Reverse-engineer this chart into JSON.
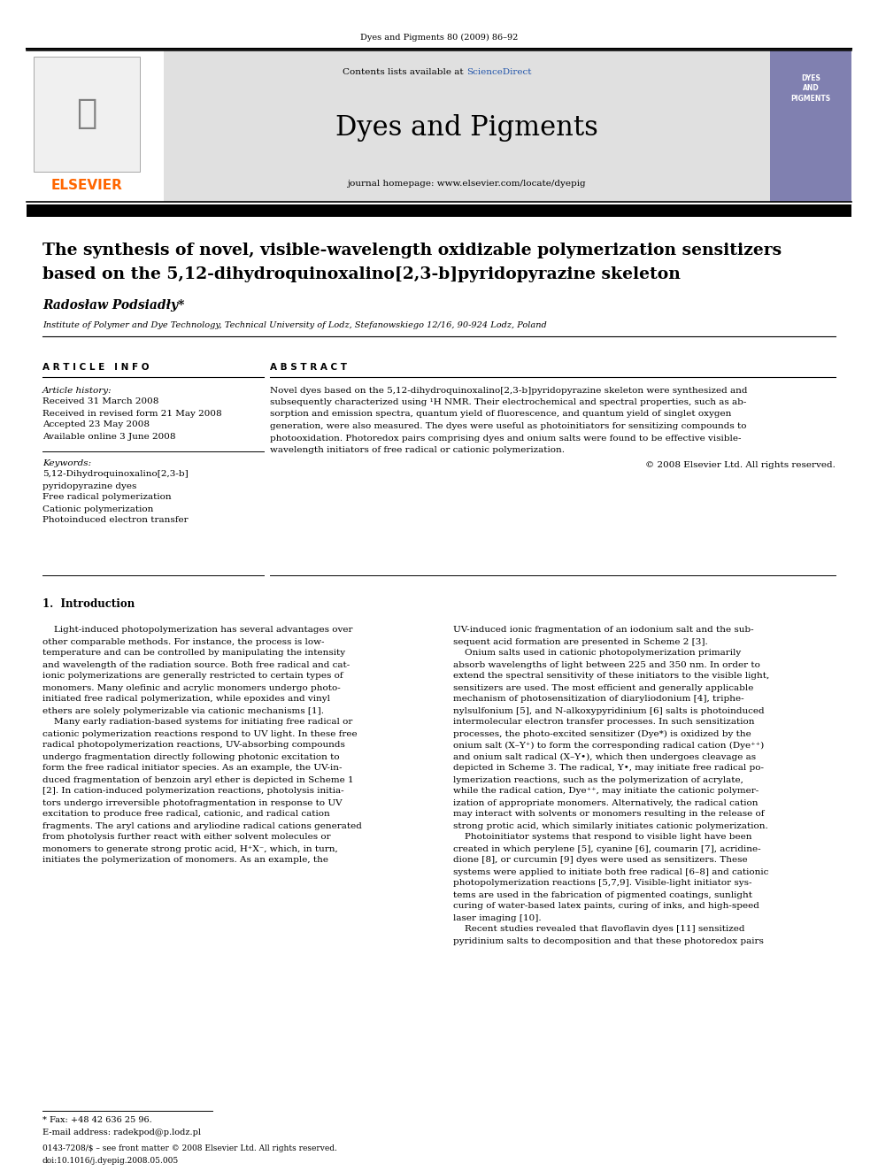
{
  "page_title": "Dyes and Pigments 80 (2009) 86–92",
  "journal_name": "Dyes and Pigments",
  "contents_line_plain": "Contents lists available at ",
  "contents_line_link": "ScienceDirect",
  "journal_homepage": "journal homepage: www.elsevier.com/locate/dyepig",
  "article_title_line1": "The synthesis of novel, visible-wavelength oxidizable polymerization sensitizers",
  "article_title_line2": "based on the 5,12-dihydroquinoxalino[2,3-b]pyridopyrazine skeleton",
  "author": "Radosław Podsiadły*",
  "affiliation": "Institute of Polymer and Dye Technology, Technical University of Lodz, Stefanowskiego 12/16, 90-924 Lodz, Poland",
  "article_info_header": "ARTICLE INFO",
  "abstract_header": "ABSTRACT",
  "article_history_label": "Article history:",
  "received": "Received 31 March 2008",
  "received_revised": "Received in revised form 21 May 2008",
  "accepted": "Accepted 23 May 2008",
  "available": "Available online 3 June 2008",
  "keywords_label": "Keywords:",
  "keywords": [
    "5,12-Dihydroquinoxalino[2,3-b]",
    "pyridopyrazine dyes",
    "Free radical polymerization",
    "Cationic polymerization",
    "Photoinduced electron transfer"
  ],
  "copyright": "© 2008 Elsevier Ltd. All rights reserved.",
  "intro_header": "1.  Introduction",
  "footnote_fax": "* Fax: +48 42 636 25 96.",
  "footnote_email": "E-mail address: radekpod@p.lodz.pl",
  "footer_issn": "0143-7208/$ – see front matter © 2008 Elsevier Ltd. All rights reserved.",
  "footer_doi": "doi:10.1016/j.dyepig.2008.05.005",
  "bg_header": "#e0e0e0",
  "color_elsevier": "#ff6600",
  "color_sciencedirect": "#2255aa",
  "color_link": "#2255aa"
}
